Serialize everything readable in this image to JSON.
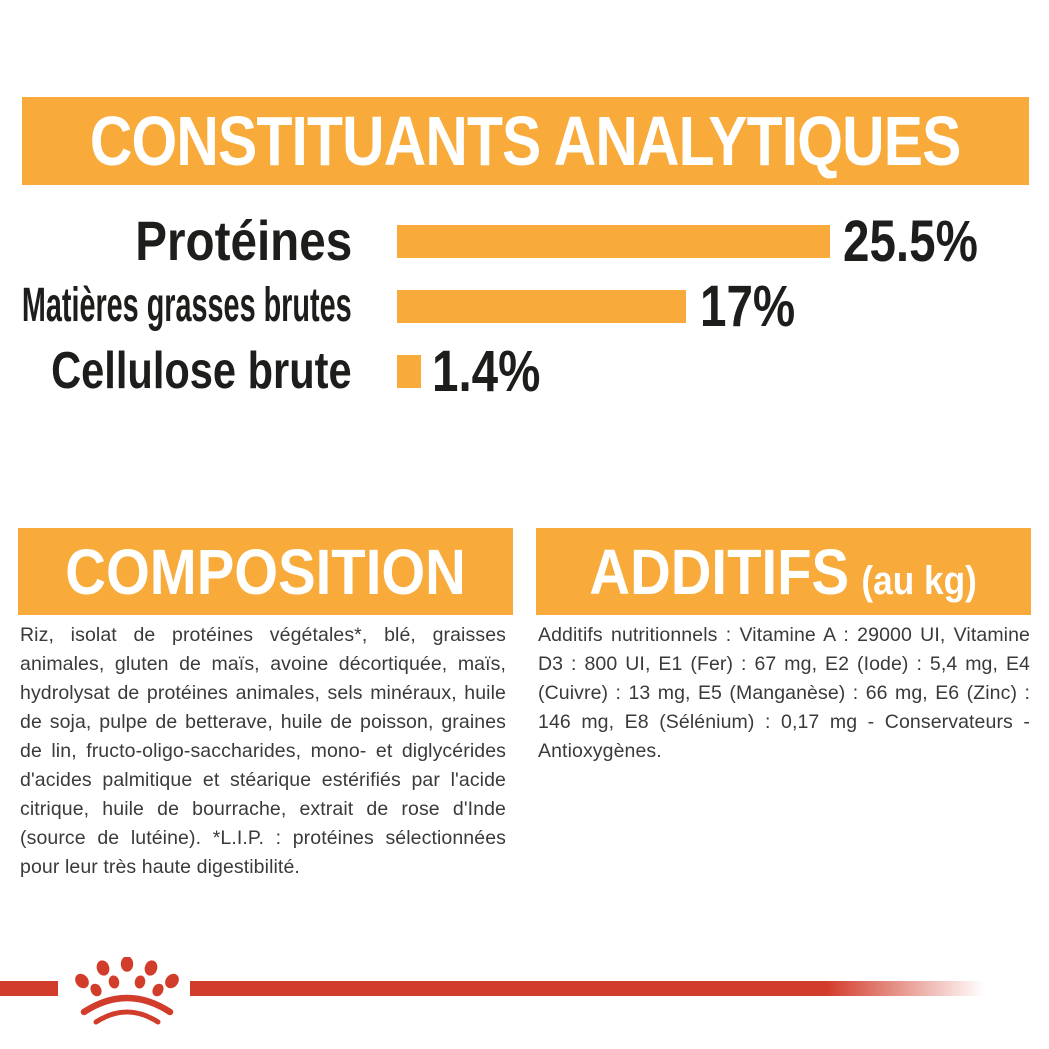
{
  "theme": {
    "accent_orange": "#F8AB3A",
    "brand_red": "#D23C2B",
    "heading_text_color": "#ffffff",
    "chart_text_color": "#1d1d1b",
    "body_text_color": "#3a3a3a"
  },
  "header": {
    "title": "CONSTITUANTS ANALYTIQUES"
  },
  "chart_data": {
    "type": "bar",
    "orientation": "horizontal",
    "categories": [
      "Protéines",
      "Matières grasses brutes",
      "Cellulose brute"
    ],
    "values": [
      25.5,
      17,
      1.4
    ],
    "value_labels": [
      "25.5%",
      "17%",
      "1.4%"
    ],
    "unit": "%",
    "axis_max": 25.5,
    "bar_color": "#F8AB3A",
    "grid": false,
    "legend": false,
    "title": "CONSTITUANTS ANALYTIQUES"
  },
  "composition": {
    "title": "COMPOSITION",
    "body": "Riz, isolat de protéines végétales*, blé, graisses animales, gluten de maïs, avoine décortiquée, maïs, hydrolysat de protéines animales, sels minéraux, huile de soja, pulpe de betterave, huile de poisson, graines de lin, fructo-oligo-saccharides, mono- et diglycérides d'acides palmitique et stéarique estérifiés par l'acide citrique, huile de bourrache, extrait de rose d'Inde (source de lutéine). *L.I.P. : protéines sélectionnées pour leur très haute digestibilité."
  },
  "additifs": {
    "title": "ADDITIFS",
    "subtitle": "(au kg)",
    "body": "Additifs nutritionnels : Vitamine A : 29000 UI, Vitamine D3 : 800 UI, E1 (Fer) : 67 mg, E2 (Iode) : 5,4 mg, E4 (Cuivre) : 13 mg, E5 (Manganèse) : 66 mg, E6 (Zinc) : 146 mg, E8 (Sélénium) : 0,17 mg - Conservateurs - Antioxygènes."
  },
  "footer": {
    "logo": "royal-canin-crown"
  }
}
